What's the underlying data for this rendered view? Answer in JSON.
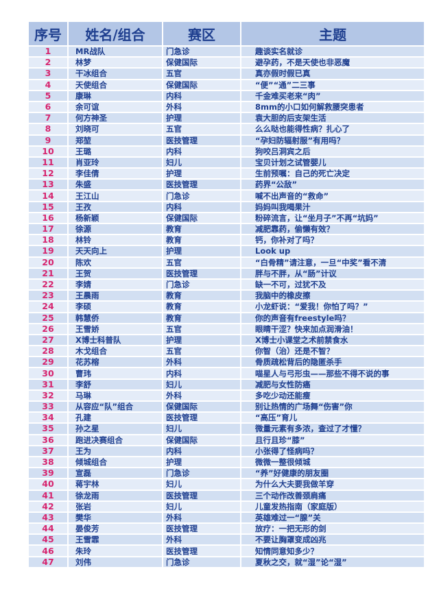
{
  "headers": [
    "序号",
    "姓名/组合",
    "赛区",
    "主题"
  ],
  "rows": [
    [
      "1",
      "MR战队",
      "门急诊",
      "趣谈实名就诊"
    ],
    [
      "2",
      "林梦",
      "保健国际",
      "避孕药，不是天使也非恶魔"
    ],
    [
      "3",
      "干冰组合",
      "五官",
      "真亦假时假已真"
    ],
    [
      "4",
      "天使组合",
      "保健国际",
      "“便”“通”二三事"
    ],
    [
      "5",
      "康琳",
      "内科",
      "千金难买老来“肉”"
    ],
    [
      "6",
      "余可谊",
      "外科",
      "8mm的小口如何解救腰突患者"
    ],
    [
      "7",
      "何方神圣",
      "护理",
      "袁大胆的后支架生活"
    ],
    [
      "8",
      "刘晓可",
      "五官",
      "么么哒也能得性病？扎心了"
    ],
    [
      "9",
      "郑堃",
      "医技管理",
      "“孕妇防辐射服”有用吗？"
    ],
    [
      "10",
      "王璐",
      "内科",
      "狗咬吕洞宾之后"
    ],
    [
      "11",
      "肖亚玲",
      "妇儿",
      "宝贝计划之试管婴儿"
    ],
    [
      "12",
      "李佳倩",
      "护理",
      "生前预嘱：自己的死亡决定"
    ],
    [
      "13",
      "朱盛",
      "医技管理",
      "药界“公敌”"
    ],
    [
      "14",
      "王江山",
      "门急诊",
      "喊不出声音的“救命”"
    ],
    [
      "15",
      "王孜",
      "内科",
      "妈妈叫我喝果汁"
    ],
    [
      "16",
      "杨新颖",
      "保健国际",
      "粉碎流言，让“坐月子”不再“坑妈”"
    ],
    [
      "17",
      "徐源",
      "教育",
      "减肥靠药，偷懒有效？"
    ],
    [
      "18",
      "林铃",
      "教育",
      "钙，你补对了吗？"
    ],
    [
      "19",
      "天天向上",
      "护理",
      "Look up"
    ],
    [
      "20",
      "陈欢",
      "五官",
      "“白骨精”请注意，一旦“中奖”看不清"
    ],
    [
      "21",
      "王贺",
      "医技管理",
      "胖与不胖，从“肠”计议"
    ],
    [
      "22",
      "李婧",
      "门急诊",
      "缺一不可，过犹不及"
    ],
    [
      "23",
      "王晨雨",
      "教育",
      "我脑中的橡皮擦"
    ],
    [
      "24",
      "李硕",
      "教育",
      "小龙虾说：“爱我！你怕了吗？”"
    ],
    [
      "25",
      "韩慧侨",
      "教育",
      "你的声音有freestyle吗？"
    ],
    [
      "26",
      "王雪娇",
      "五官",
      "眼睛干涩？快来加点润滑油！"
    ],
    [
      "27",
      "X博士科普队",
      "护理",
      "X博士小课堂之术前禁食水"
    ],
    [
      "28",
      "木戈组合",
      "五官",
      "你智（治）还是不智？"
    ],
    [
      "29",
      "花苏榕",
      "外科",
      "骨质疏松背后的隐匿杀手"
    ],
    [
      "30",
      "曹玮",
      "内科",
      "喵星人与弓形虫——那些不得不说的事"
    ],
    [
      "31",
      "李舒",
      "妇儿",
      "减肥与女性防癌"
    ],
    [
      "32",
      "马琳",
      "外科",
      "多吃少动还能瘦"
    ],
    [
      "33",
      "从容应“队”组合",
      "保健国际",
      "别让热情的广场舞“伤害”你"
    ],
    [
      "34",
      "孔建",
      "医技管理",
      "“高压”育儿"
    ],
    [
      "35",
      "孙之星",
      "妇儿",
      "微量元素有多浓，查过了才懂？"
    ],
    [
      "36",
      "跑进决赛组合",
      "保健国际",
      "且行且珍“膝”"
    ],
    [
      "37",
      "王为",
      "内科",
      "小张得了怪病吗？"
    ],
    [
      "38",
      "倾城组合",
      "护理",
      "微微一整很倾城"
    ],
    [
      "39",
      "宣磊",
      "门急诊",
      "“养”好健康的朋友圈"
    ],
    [
      "40",
      "蒋宇林",
      "妇儿",
      "为什么大夫要我做羊穿"
    ],
    [
      "41",
      "徐龙雨",
      "医技管理",
      "三个动作改善颈肩痛"
    ],
    [
      "42",
      "张岩",
      "妇儿",
      "儿童发热指南（家庭版）"
    ],
    [
      "43",
      "樊华",
      "外科",
      "英雄难过一“腺”关"
    ],
    [
      "44",
      "晏俊芳",
      "医技管理",
      "放疗：一把无形的剑"
    ],
    [
      "45",
      "王雪霏",
      "外科",
      "不要让胸罩变成凶兆"
    ],
    [
      "46",
      "朱玲",
      "医技管理",
      "知情同意知多少？"
    ],
    [
      "47",
      "刘伟",
      "门急诊",
      "夏秋之交，就“湿”论“湿”"
    ]
  ],
  "colors": {
    "header_bg": "#b3c6e6",
    "row_bg": "#d2dff2",
    "row_alt_bg": "#e4ecf8",
    "text": "#1f3f8f",
    "number_text": "#d6246e"
  }
}
